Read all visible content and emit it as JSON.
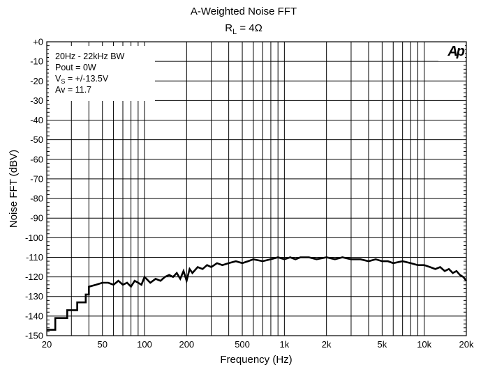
{
  "chart_data": {
    "type": "line",
    "title": "A-Weighted Noise FFT",
    "subtitle_main": "R",
    "subtitle_sub": "L",
    "subtitle_rest": " = 4Ω",
    "xlabel": "Frequency (Hz)",
    "ylabel": "Noise FFT (dBV)",
    "x_scale": "log",
    "xlim": [
      20,
      20000
    ],
    "ylim": [
      -150,
      0
    ],
    "grid": true,
    "x_ticks": [
      {
        "value": 20,
        "label": "20"
      },
      {
        "value": 50,
        "label": "50"
      },
      {
        "value": 100,
        "label": "100"
      },
      {
        "value": 200,
        "label": "200"
      },
      {
        "value": 500,
        "label": "500"
      },
      {
        "value": 1000,
        "label": "1k"
      },
      {
        "value": 2000,
        "label": "2k"
      },
      {
        "value": 5000,
        "label": "5k"
      },
      {
        "value": 10000,
        "label": "10k"
      },
      {
        "value": 20000,
        "label": "20k"
      }
    ],
    "y_ticks": [
      {
        "value": 0,
        "label": "+0"
      },
      {
        "value": -10,
        "label": "-10"
      },
      {
        "value": -20,
        "label": "-20"
      },
      {
        "value": -30,
        "label": "-30"
      },
      {
        "value": -40,
        "label": "-40"
      },
      {
        "value": -50,
        "label": "-50"
      },
      {
        "value": -60,
        "label": "-60"
      },
      {
        "value": -70,
        "label": "-70"
      },
      {
        "value": -80,
        "label": "-80"
      },
      {
        "value": -90,
        "label": "-90"
      },
      {
        "value": -100,
        "label": "-100"
      },
      {
        "value": -110,
        "label": "-110"
      },
      {
        "value": -120,
        "label": "-120"
      },
      {
        "value": -130,
        "label": "-130"
      },
      {
        "value": -140,
        "label": "-140"
      },
      {
        "value": -150,
        "label": "-150"
      }
    ],
    "annotations": {
      "line1": "20Hz - 22kHz BW",
      "line2": "Pout = 0W",
      "line3_main": "V",
      "line3_sub": "S",
      "line3_rest": " = +/-13.5V",
      "line4": "Av = 11.7"
    },
    "logo": "Ap",
    "series": [
      {
        "color": "#000000",
        "x": [
          20,
          23,
          23,
          28,
          28,
          33,
          33,
          38,
          38,
          40,
          40,
          45,
          50,
          55,
          60,
          65,
          70,
          75,
          80,
          85,
          90,
          95,
          100,
          110,
          120,
          130,
          140,
          150,
          160,
          170,
          180,
          190,
          200,
          210,
          220,
          240,
          260,
          280,
          300,
          330,
          360,
          400,
          450,
          500,
          550,
          600,
          700,
          800,
          900,
          1000,
          1100,
          1200,
          1300,
          1500,
          1700,
          2000,
          2300,
          2600,
          3000,
          3500,
          4000,
          4500,
          5000,
          5500,
          6000,
          7000,
          8000,
          9000,
          10000,
          11000,
          12000,
          13000,
          14000,
          15000,
          16000,
          17000,
          18000,
          19000,
          20000
        ],
        "y": [
          -147,
          -147,
          -141,
          -141,
          -137,
          -137,
          -133,
          -133,
          -129,
          -129,
          -125,
          -124,
          -123,
          -123,
          -124,
          -122,
          -124,
          -123,
          -125,
          -122,
          -123,
          -124,
          -120,
          -123,
          -121,
          -122,
          -120,
          -119,
          -120,
          -118,
          -121,
          -117,
          -122,
          -116,
          -118,
          -115,
          -116,
          -114,
          -115,
          -113,
          -114,
          -113,
          -112,
          -113,
          -112,
          -111,
          -112,
          -111,
          -110,
          -111,
          -110,
          -111,
          -110,
          -110,
          -111,
          -110,
          -111,
          -110,
          -111,
          -111,
          -112,
          -111,
          -112,
          -112,
          -113,
          -112,
          -113,
          -114,
          -114,
          -115,
          -116,
          -115,
          -117,
          -116,
          -118,
          -117,
          -119,
          -120,
          -122
        ]
      }
    ]
  }
}
